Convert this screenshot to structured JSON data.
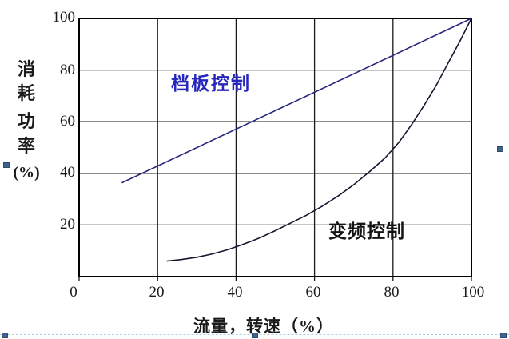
{
  "chart_data": {
    "type": "line",
    "title": "",
    "xlabel": "流量，转速（%）",
    "ylabel": "消耗功率(%)",
    "ylabel_chars": [
      "消",
      "耗",
      "功",
      "率",
      "(%)"
    ],
    "x_ticks": [
      0,
      20,
      40,
      60,
      80,
      100
    ],
    "y_ticks": [
      100,
      80,
      60,
      40,
      20
    ],
    "xlim": [
      0,
      100
    ],
    "ylim": [
      0,
      100
    ],
    "grid": "on",
    "legend_position": "inline-annotations",
    "series": [
      {
        "name": "档板控制",
        "shape": "straight-line",
        "color": "#26267e",
        "label_color": "#2727bd",
        "points": [
          [
            11,
            36.4
          ],
          [
            100,
            100
          ]
        ]
      },
      {
        "name": "变频控制",
        "shape": "convex-curve",
        "color": "#16162f",
        "label_color": "#141414",
        "points": [
          [
            22.4,
            6
          ],
          [
            26,
            6.6
          ],
          [
            30,
            7.5
          ],
          [
            34,
            8.8
          ],
          [
            38,
            10.5
          ],
          [
            42,
            12.6
          ],
          [
            46,
            15
          ],
          [
            50,
            17.8
          ],
          [
            54,
            20.8
          ],
          [
            58,
            23.8
          ],
          [
            62,
            27.3
          ],
          [
            66,
            31.2
          ],
          [
            70,
            35.6
          ],
          [
            74,
            40.6
          ],
          [
            78,
            46
          ],
          [
            81.5,
            52
          ],
          [
            84.8,
            59
          ],
          [
            88,
            66.5
          ],
          [
            91,
            74
          ],
          [
            94,
            82.5
          ],
          [
            97,
            91
          ],
          [
            100,
            100
          ]
        ]
      }
    ]
  },
  "colors": {
    "background": "#ffffff",
    "grid": "#1a1a1a",
    "frame": "#000000",
    "selection_border": "#b3c9dd",
    "selection_handle": "#41618d"
  }
}
